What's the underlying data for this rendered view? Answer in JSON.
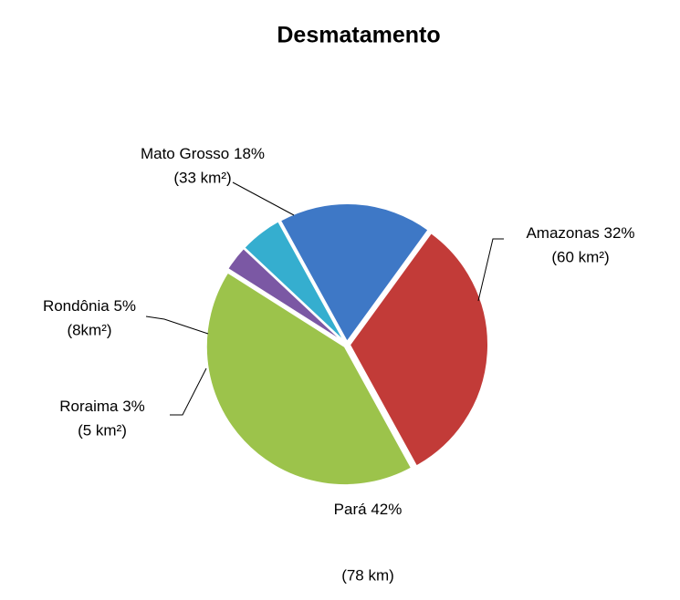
{
  "chart_data": {
    "type": "pie",
    "title": "Desmatamento",
    "categories": [
      "Amazonas",
      "Pará",
      "Roraima",
      "Rondônia",
      "Mato Grosso"
    ],
    "values": [
      32,
      42,
      3,
      5,
      18
    ],
    "value_labels": [
      "32%",
      "42%",
      "3%",
      "5%",
      "18%"
    ],
    "amounts": [
      "(60 km²)",
      "(78 km)",
      "(5 km²)",
      "(8km²)",
      "(33 km²)"
    ],
    "colors": [
      "#c23b38",
      "#9cc34b",
      "#7b58a4",
      "#35aecf",
      "#3e78c6"
    ]
  }
}
